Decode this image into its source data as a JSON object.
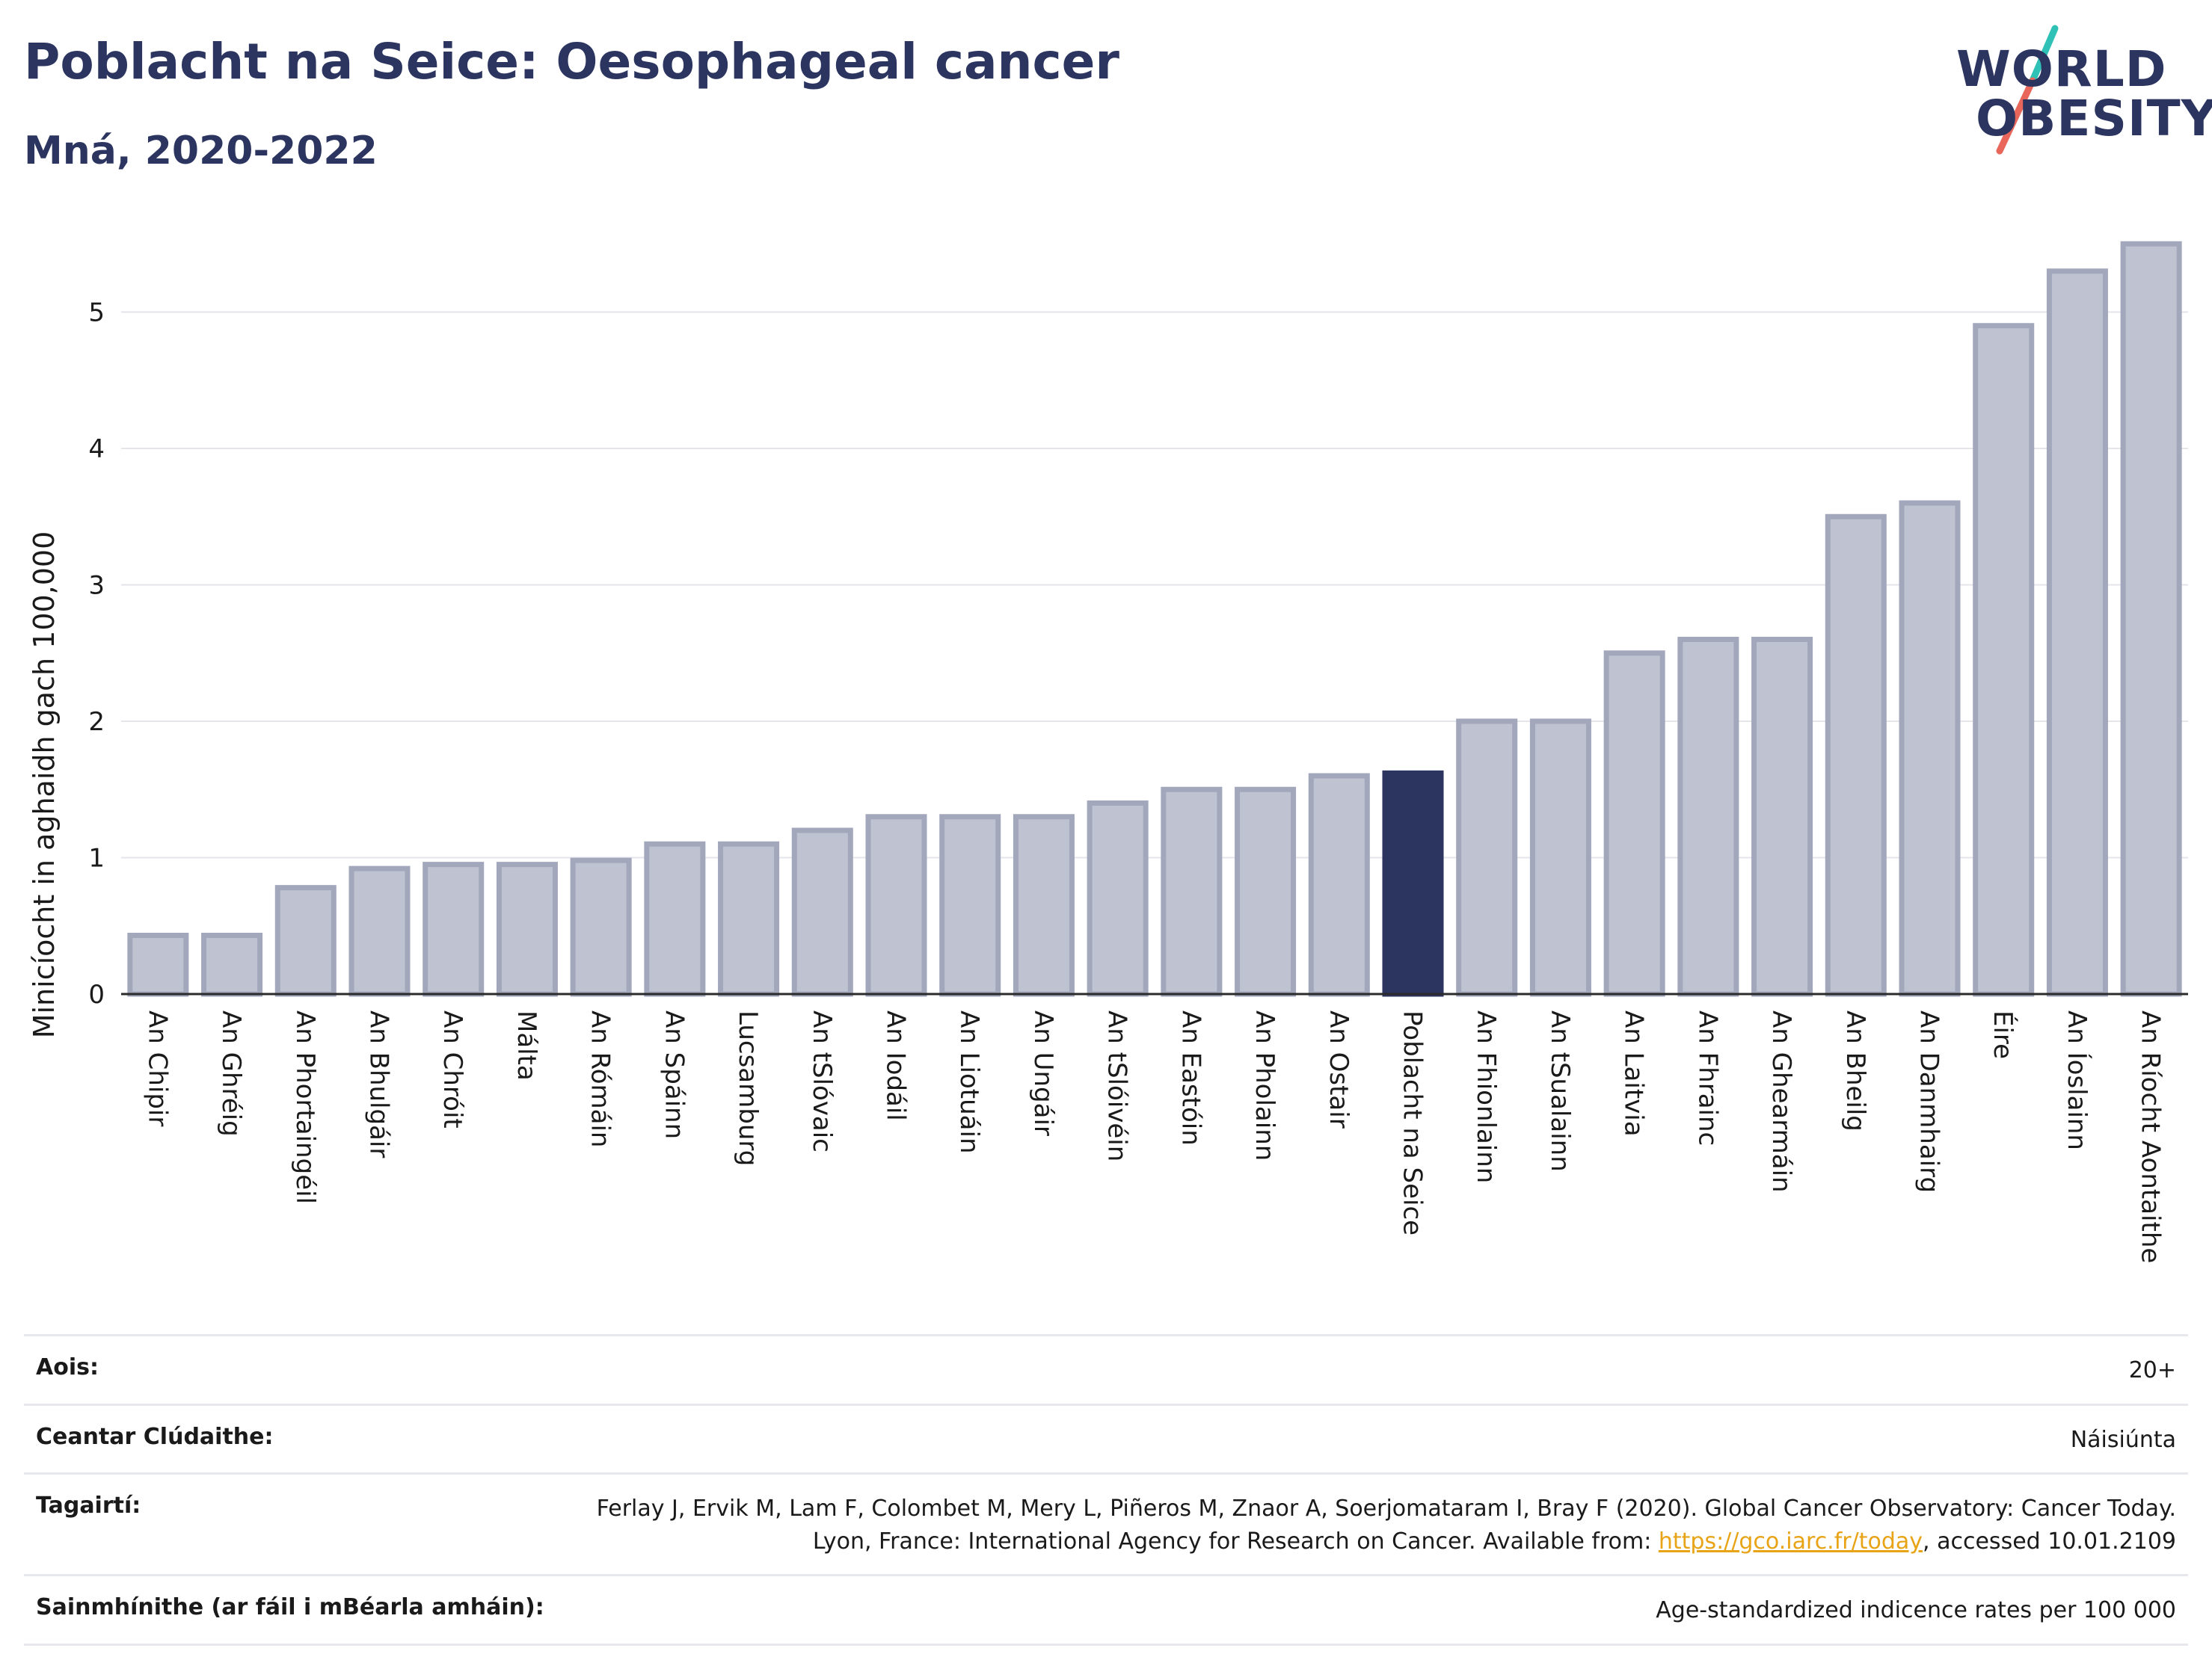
{
  "header": {
    "title": "Poblacht na Seice: Oesophageal cancer",
    "subtitle": "Mná, 2020-2022"
  },
  "logo": {
    "line1": "WORLD",
    "line2": "OBESITY",
    "slash_top_color": "#2fc1b5",
    "slash_bottom_color": "#e8675a"
  },
  "colors": {
    "bar_default": "#bfc3d1",
    "bar_default_stroke": "#a2a7bc",
    "bar_highlight": "#2b3560",
    "text_primary": "#2b3560"
  },
  "chart_data": {
    "type": "bar",
    "ylabel": "Minicíocht in aghaidh gach 100,000",
    "xlabel": "",
    "ylim": [
      0,
      5.5
    ],
    "yticks": [
      0,
      1,
      2,
      3,
      4,
      5
    ],
    "grid": true,
    "highlight": "Poblacht na Seice",
    "categories": [
      "An Chipir",
      "An Ghréig",
      "An Phortaingéil",
      "An Bhulgáir",
      "An Chróit",
      "Málta",
      "An Rómáin",
      "An Spáinn",
      "Lucsamburg",
      "An tSlóvaic",
      "An Iodáil",
      "An Liotuáin",
      "An Ungáir",
      "An tSlóivéin",
      "An Eastóin",
      "An Pholainn",
      "An Ostair",
      "Poblacht na Seice",
      "An Fhionlainn",
      "An tSualainn",
      "An Laitvia",
      "An Fhrainc",
      "An Ghearmáin",
      "An Bheilg",
      "An Danmhairg",
      "Éire",
      "An Íoslainn",
      "An Ríocht Aontaithe"
    ],
    "values": [
      0.43,
      0.43,
      0.78,
      0.92,
      0.95,
      0.95,
      0.98,
      1.1,
      1.1,
      1.2,
      1.3,
      1.3,
      1.3,
      1.4,
      1.5,
      1.5,
      1.6,
      1.62,
      2.0,
      2.0,
      2.5,
      2.6,
      2.6,
      3.5,
      3.6,
      4.9,
      5.3,
      5.5
    ]
  },
  "info": {
    "rows": [
      {
        "label": "Aois:",
        "value": "20+"
      },
      {
        "label": "Ceantar Clúdaithe:",
        "value": "Náisiúnta"
      },
      {
        "label": "Tagairtí:",
        "value_before": "Ferlay J, Ervik M, Lam F, Colombet M, Mery L, Piñeros M, Znaor A, Soerjomataram I, Bray F (2020). Global Cancer Observatory: Cancer Today. Lyon, France: International Agency for Research on Cancer. Available from: ",
        "link": "https://gco.iarc.fr/today",
        "value_after": ", accessed 10.01.2109"
      },
      {
        "label": "Sainmhínithe (ar fáil i mBéarla amháin):",
        "value": "Age-standardized indicence rates per 100 000"
      }
    ]
  }
}
